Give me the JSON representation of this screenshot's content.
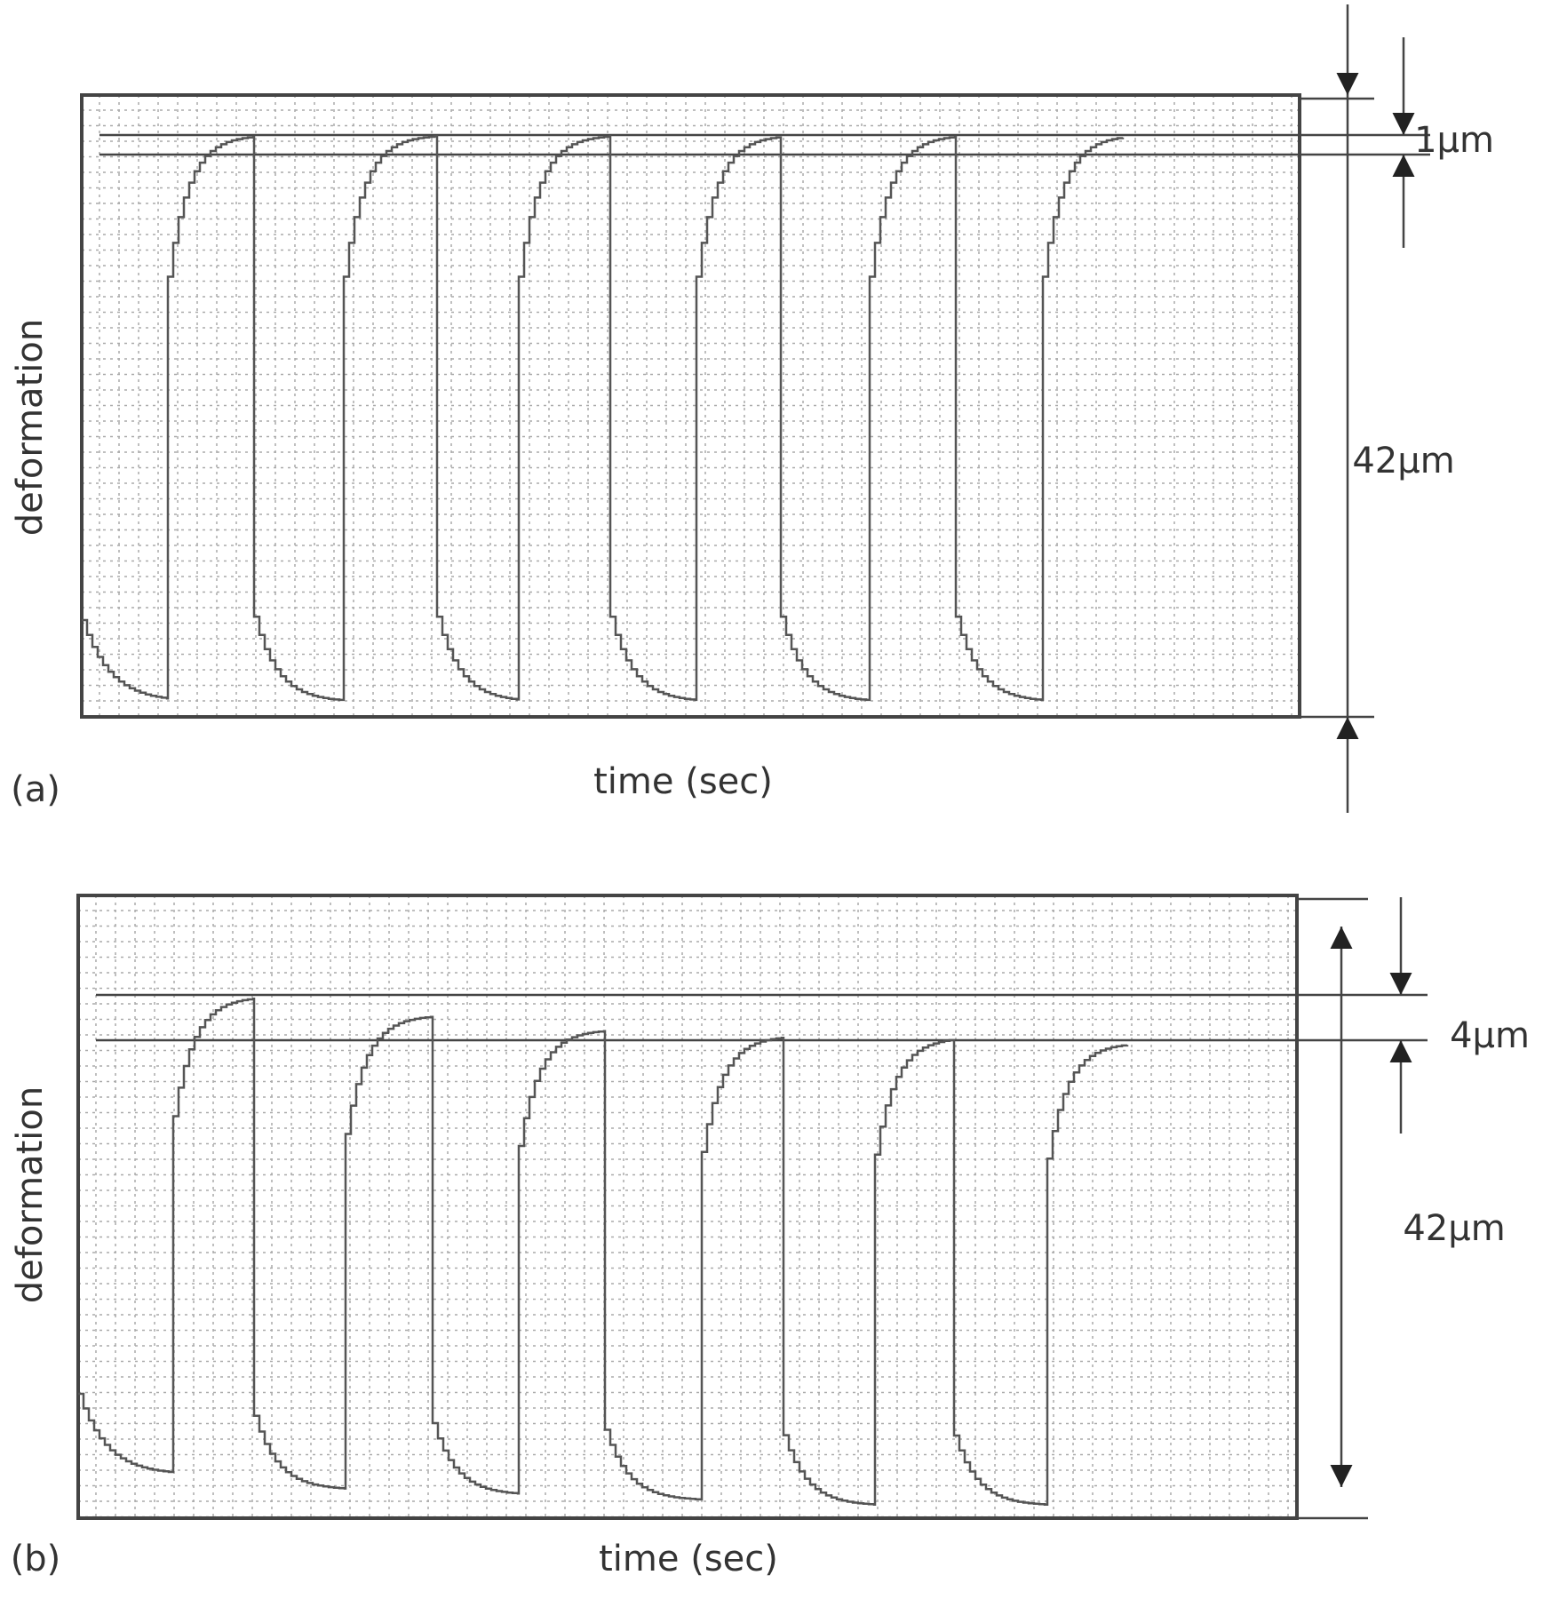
{
  "panels": [
    {
      "label": "(a)",
      "y_axis_label": "deformation",
      "x_axis_label": "time (sec)",
      "dimensions": [
        "1μm",
        "42μm"
      ]
    },
    {
      "label": "(b)",
      "y_axis_label": "deformation",
      "x_axis_label": "time (sec)",
      "dimensions": [
        "4μm",
        "42μm"
      ]
    }
  ]
}
